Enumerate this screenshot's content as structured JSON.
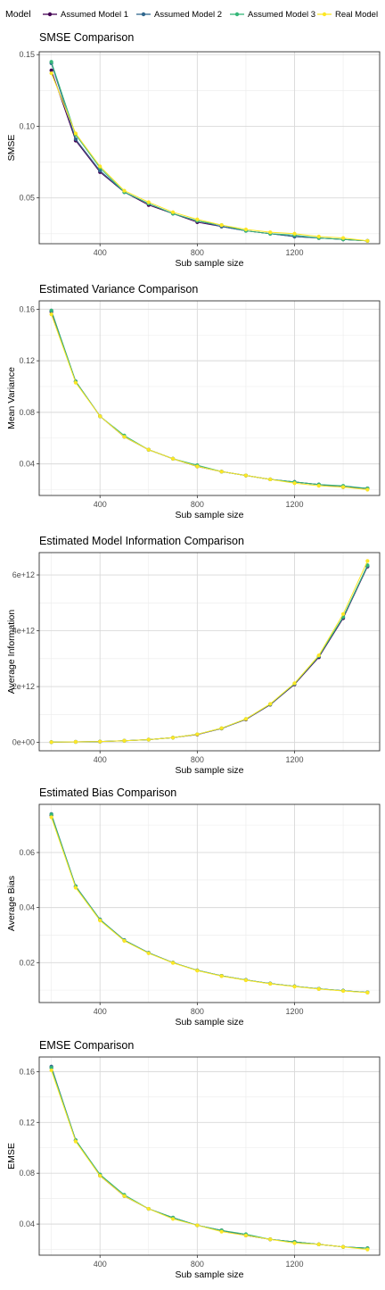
{
  "legend": {
    "title": "Model",
    "placement": "top",
    "entries": [
      {
        "label": "Assumed Model 1",
        "color": "#440154"
      },
      {
        "label": "Assumed Model 2",
        "color": "#31688E"
      },
      {
        "label": "Assumed Model 3",
        "color": "#35B779"
      },
      {
        "label": "Real Model",
        "color": "#FDE725"
      }
    ]
  },
  "chart_data": [
    {
      "type": "line",
      "title": "SMSE Comparison",
      "xlabel": "Sub sample size",
      "ylabel": "SMSE",
      "xlim": [
        150,
        1550
      ],
      "ylim": [
        0.018,
        0.152
      ],
      "xticks": [
        400,
        800,
        1200
      ],
      "xtick_labels": [
        "400",
        "800",
        "1200"
      ],
      "yticks": [
        0.05,
        0.1,
        0.15
      ],
      "ytick_labels": [
        "0.05",
        "0.10",
        "0.15"
      ],
      "grid": true,
      "x": [
        200,
        300,
        400,
        500,
        600,
        700,
        800,
        900,
        1000,
        1100,
        1200,
        1300,
        1400,
        1500
      ],
      "series": [
        {
          "name": "Assumed Model 1",
          "values": [
            0.139,
            0.09,
            0.068,
            0.054,
            0.045,
            0.039,
            0.033,
            0.03,
            0.027,
            0.025,
            0.023,
            0.022,
            0.021,
            0.02
          ]
        },
        {
          "name": "Assumed Model 2",
          "values": [
            0.144,
            0.091,
            0.069,
            0.054,
            0.046,
            0.039,
            0.034,
            0.03,
            0.027,
            0.025,
            0.023,
            0.022,
            0.021,
            0.02
          ]
        },
        {
          "name": "Assumed Model 3",
          "values": [
            0.145,
            0.094,
            0.071,
            0.054,
            0.046,
            0.039,
            0.034,
            0.031,
            0.027,
            0.025,
            0.024,
            0.022,
            0.021,
            0.02
          ]
        },
        {
          "name": "Real Model",
          "values": [
            0.137,
            0.095,
            0.072,
            0.055,
            0.047,
            0.04,
            0.035,
            0.031,
            0.028,
            0.026,
            0.025,
            0.023,
            0.022,
            0.02
          ]
        }
      ]
    },
    {
      "type": "line",
      "title": "Estimated Variance Comparison",
      "xlabel": "Sub sample size",
      "ylabel": "Mean Variance",
      "xlim": [
        150,
        1550
      ],
      "ylim": [
        0.0155,
        0.1665
      ],
      "xticks": [
        400,
        800,
        1200
      ],
      "xtick_labels": [
        "400",
        "800",
        "1200"
      ],
      "yticks": [
        0.04,
        0.08,
        0.12,
        0.16
      ],
      "ytick_labels": [
        "0.04",
        "0.08",
        "0.12",
        "0.16"
      ],
      "grid": true,
      "x": [
        200,
        300,
        400,
        500,
        600,
        700,
        800,
        900,
        1000,
        1100,
        1200,
        1300,
        1400,
        1500
      ],
      "series": [
        {
          "name": "Assumed Model 1",
          "values": [
            0.158,
            0.104,
            0.077,
            0.061,
            0.051,
            0.044,
            0.038,
            0.034,
            0.031,
            0.028,
            0.026,
            0.024,
            0.022,
            0.021
          ]
        },
        {
          "name": "Assumed Model 2",
          "values": [
            0.159,
            0.104,
            0.077,
            0.061,
            0.051,
            0.044,
            0.038,
            0.034,
            0.031,
            0.028,
            0.026,
            0.024,
            0.022,
            0.021
          ]
        },
        {
          "name": "Assumed Model 3",
          "values": [
            0.159,
            0.104,
            0.077,
            0.062,
            0.051,
            0.044,
            0.039,
            0.034,
            0.031,
            0.028,
            0.026,
            0.024,
            0.023,
            0.021
          ]
        },
        {
          "name": "Real Model",
          "values": [
            0.156,
            0.103,
            0.077,
            0.061,
            0.051,
            0.044,
            0.038,
            0.034,
            0.031,
            0.028,
            0.025,
            0.023,
            0.022,
            0.02
          ]
        }
      ]
    },
    {
      "type": "line",
      "title": "Estimated Model Information Comparison",
      "xlabel": "Sub sample size",
      "ylabel": "Average Information",
      "xlim": [
        150,
        1550
      ],
      "ylim": [
        -300000000000.0,
        6800000000000.0
      ],
      "xticks": [
        400,
        800,
        1200
      ],
      "xtick_labels": [
        "400",
        "800",
        "1200"
      ],
      "yticks": [
        0,
        2000000000000.0,
        4000000000000.0,
        6000000000000.0
      ],
      "ytick_labels": [
        "0e+00",
        "2e+12",
        "4e+12",
        "6e+12"
      ],
      "grid": true,
      "x": [
        200,
        300,
        400,
        500,
        600,
        700,
        800,
        900,
        1000,
        1100,
        1200,
        1300,
        1400,
        1500
      ],
      "series": [
        {
          "name": "Assumed Model 1",
          "values": [
            10000000000.0,
            20000000000.0,
            30000000000.0,
            60000000000.0,
            100000000000.0,
            170000000000.0,
            280000000000.0,
            500000000000.0,
            820000000000.0,
            1350000000000.0,
            2080000000000.0,
            3050000000000.0,
            4450000000000.0,
            6300000000000.0
          ]
        },
        {
          "name": "Assumed Model 2",
          "values": [
            10000000000.0,
            20000000000.0,
            30000000000.0,
            60000000000.0,
            100000000000.0,
            170000000000.0,
            290000000000.0,
            500000000000.0,
            830000000000.0,
            1360000000000.0,
            2100000000000.0,
            3080000000000.0,
            4480000000000.0,
            6320000000000.0
          ]
        },
        {
          "name": "Assumed Model 3",
          "values": [
            10000000000.0,
            20000000000.0,
            30000000000.0,
            60000000000.0,
            100000000000.0,
            170000000000.0,
            290000000000.0,
            510000000000.0,
            840000000000.0,
            1370000000000.0,
            2110000000000.0,
            3100000000000.0,
            4500000000000.0,
            6350000000000.0
          ]
        },
        {
          "name": "Real Model",
          "values": [
            10000000000.0,
            20000000000.0,
            30000000000.0,
            60000000000.0,
            100000000000.0,
            170000000000.0,
            290000000000.0,
            510000000000.0,
            840000000000.0,
            1380000000000.0,
            2120000000000.0,
            3120000000000.0,
            4600000000000.0,
            6500000000000.0
          ]
        }
      ]
    },
    {
      "type": "line",
      "title": "Estimated Bias Comparison",
      "xlabel": "Sub sample size",
      "ylabel": "Average Bias",
      "xlim": [
        150,
        1550
      ],
      "ylim": [
        0.0055,
        0.0775
      ],
      "xticks": [
        400,
        800,
        1200
      ],
      "xtick_labels": [
        "400",
        "800",
        "1200"
      ],
      "yticks": [
        0.02,
        0.04,
        0.06
      ],
      "ytick_labels": [
        "0.02",
        "0.04",
        "0.06"
      ],
      "grid": true,
      "x": [
        200,
        300,
        400,
        500,
        600,
        700,
        800,
        900,
        1000,
        1100,
        1200,
        1300,
        1400,
        1500
      ],
      "series": [
        {
          "name": "Assumed Model 1",
          "values": [
            0.0735,
            0.0475,
            0.0355,
            0.028,
            0.0235,
            0.02,
            0.0172,
            0.0152,
            0.0137,
            0.0124,
            0.0114,
            0.0105,
            0.0098,
            0.0092
          ]
        },
        {
          "name": "Assumed Model 2",
          "values": [
            0.074,
            0.0478,
            0.0357,
            0.0282,
            0.0236,
            0.02,
            0.0172,
            0.0152,
            0.0137,
            0.0124,
            0.0114,
            0.0105,
            0.0098,
            0.0092
          ]
        },
        {
          "name": "Assumed Model 3",
          "values": [
            0.0738,
            0.0477,
            0.0356,
            0.0281,
            0.0235,
            0.02,
            0.0172,
            0.0152,
            0.0137,
            0.0124,
            0.0114,
            0.0105,
            0.0098,
            0.0092
          ]
        },
        {
          "name": "Real Model",
          "values": [
            0.0728,
            0.0472,
            0.0353,
            0.0279,
            0.0234,
            0.0199,
            0.0171,
            0.0151,
            0.0136,
            0.0123,
            0.0113,
            0.0104,
            0.0097,
            0.0091
          ]
        }
      ]
    },
    {
      "type": "line",
      "title": "EMSE Comparison",
      "xlabel": "Sub sample size",
      "ylabel": "EMSE",
      "xlim": [
        150,
        1550
      ],
      "ylim": [
        0.0155,
        0.1715
      ],
      "xticks": [
        400,
        800,
        1200
      ],
      "xtick_labels": [
        "400",
        "800",
        "1200"
      ],
      "yticks": [
        0.04,
        0.08,
        0.12,
        0.16
      ],
      "ytick_labels": [
        "0.04",
        "0.08",
        "0.12",
        "0.16"
      ],
      "grid": true,
      "x": [
        200,
        300,
        400,
        500,
        600,
        700,
        800,
        900,
        1000,
        1100,
        1200,
        1300,
        1400,
        1500
      ],
      "series": [
        {
          "name": "Assumed Model 1",
          "values": [
            0.163,
            0.106,
            0.078,
            0.062,
            0.052,
            0.045,
            0.039,
            0.035,
            0.031,
            0.028,
            0.026,
            0.024,
            0.022,
            0.021
          ]
        },
        {
          "name": "Assumed Model 2",
          "values": [
            0.164,
            0.106,
            0.079,
            0.062,
            0.052,
            0.045,
            0.039,
            0.035,
            0.031,
            0.028,
            0.026,
            0.024,
            0.022,
            0.021
          ]
        },
        {
          "name": "Assumed Model 3",
          "values": [
            0.163,
            0.106,
            0.079,
            0.063,
            0.052,
            0.045,
            0.039,
            0.035,
            0.032,
            0.028,
            0.026,
            0.024,
            0.022,
            0.021
          ]
        },
        {
          "name": "Real Model",
          "values": [
            0.161,
            0.105,
            0.078,
            0.062,
            0.052,
            0.044,
            0.039,
            0.034,
            0.031,
            0.028,
            0.025,
            0.024,
            0.022,
            0.02
          ]
        }
      ]
    }
  ]
}
